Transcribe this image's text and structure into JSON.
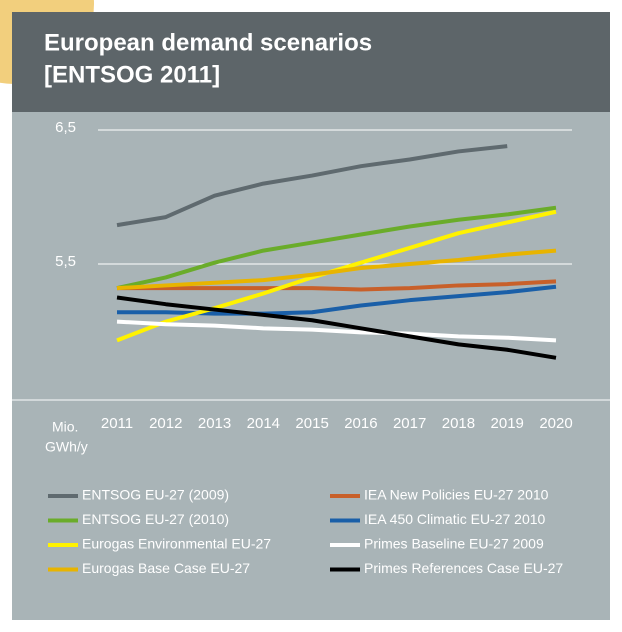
{
  "chart_data": {
    "type": "line",
    "title": [
      "European demand scenarios",
      "[ENTSOG 2011]"
    ],
    "y_axis_label": [
      "Mio.",
      "GWh/y"
    ],
    "categories": [
      "2011",
      "2012",
      "2013",
      "2014",
      "2015",
      "2016",
      "2017",
      "2018",
      "2019",
      "2020"
    ],
    "ylim": [
      4.5,
      6.5
    ],
    "yticks": [
      {
        "value": 6.5,
        "label": "6,5"
      },
      {
        "value": 5.5,
        "label": "5,5"
      }
    ],
    "grid": true,
    "series": [
      {
        "name": "ENTSOG EU-27 (2009)",
        "color": "#5f6a6f",
        "values": [
          5.79,
          5.85,
          6.01,
          6.1,
          6.16,
          6.23,
          6.28,
          6.34,
          6.38,
          null
        ]
      },
      {
        "name": "IEA New Policies EU-27 2010",
        "color": "#c8602a",
        "values": [
          5.32,
          5.32,
          5.32,
          5.32,
          5.32,
          5.31,
          5.32,
          5.34,
          5.35,
          5.37
        ]
      },
      {
        "name": "ENTSOG EU-27 (2010)",
        "color": "#6aac2a",
        "values": [
          5.32,
          5.4,
          5.51,
          5.6,
          5.66,
          5.72,
          5.78,
          5.83,
          5.87,
          5.92
        ]
      },
      {
        "name": "IEA 450 Climatic EU-27 2010",
        "color": "#1a5fa8",
        "values": [
          5.14,
          5.14,
          5.13,
          5.13,
          5.14,
          5.19,
          5.23,
          5.26,
          5.29,
          5.33
        ]
      },
      {
        "name": "Eurogas Environmental EU-27",
        "color": "#fff200",
        "values": [
          4.93,
          5.07,
          5.17,
          5.28,
          5.4,
          5.51,
          5.62,
          5.73,
          5.81,
          5.89
        ]
      },
      {
        "name": "Primes Baseline EU-27 2009",
        "color": "#ffffff",
        "values": [
          5.07,
          5.05,
          5.04,
          5.02,
          5.01,
          4.99,
          4.98,
          4.96,
          4.95,
          4.93
        ]
      },
      {
        "name": "Eurogas Base Case EU-27",
        "color": "#e8b400",
        "values": [
          5.32,
          5.34,
          5.36,
          5.38,
          5.42,
          5.47,
          5.5,
          5.53,
          5.57,
          5.6
        ]
      },
      {
        "name": "Primes References Case EU-27",
        "color": "#000000",
        "values": [
          5.25,
          5.2,
          5.16,
          5.12,
          5.08,
          5.02,
          4.96,
          4.9,
          4.86,
          4.8
        ]
      }
    ]
  }
}
